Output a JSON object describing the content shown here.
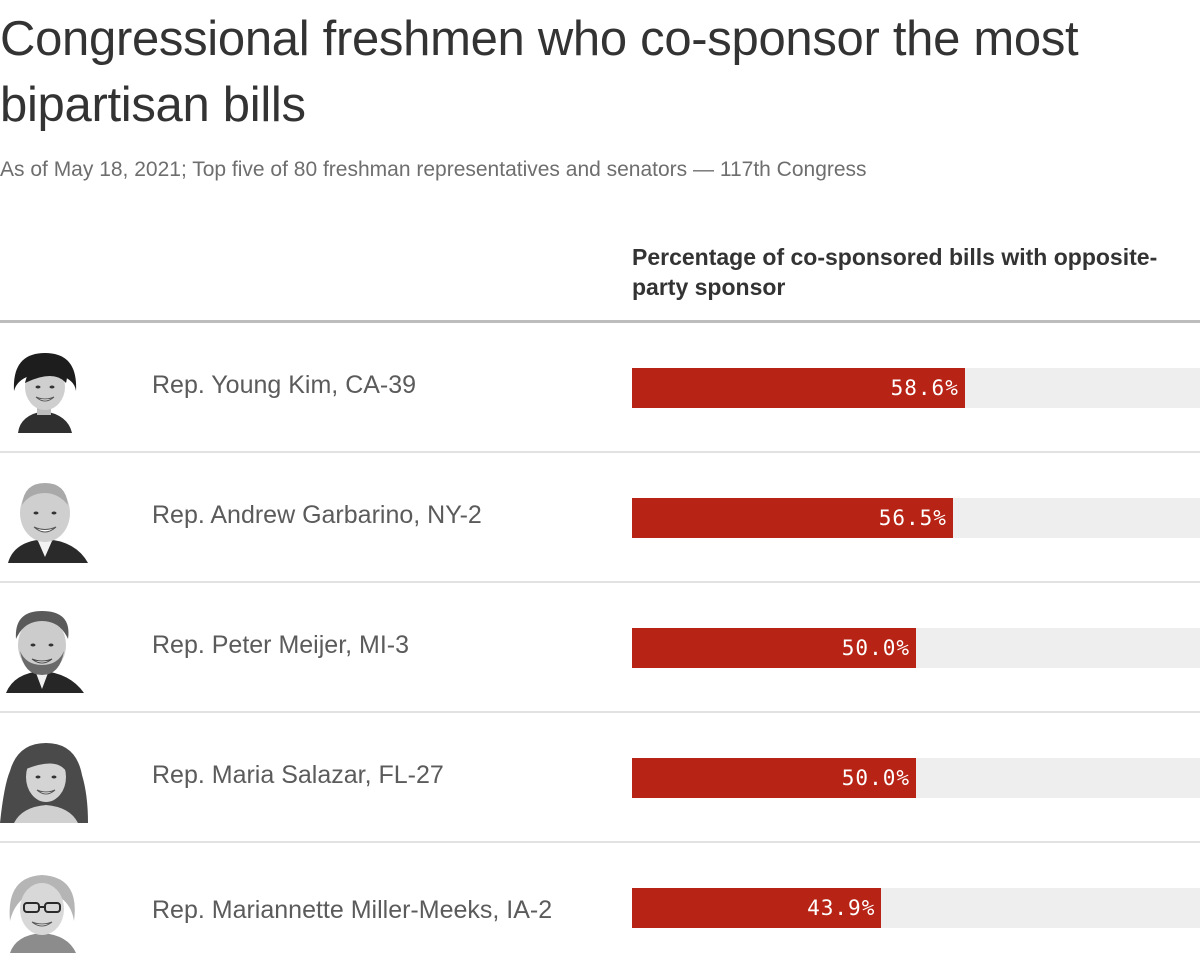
{
  "title": "Congressional freshmen who co-sponsor the most bipartisan bills",
  "subtitle": "As of May 18, 2021; Top five of 80 freshman representatives and senators — 117th Congress",
  "column_header": "Percentage of co-sponsored bills with opposite-party sponsor",
  "colors": {
    "bar": "#b72314",
    "track": "#eeeeee",
    "text": "#333333",
    "muted": "#6e6e6e"
  },
  "chart_data": {
    "type": "bar",
    "orientation": "horizontal",
    "title": "Congressional freshmen who co-sponsor the most bipartisan bills",
    "subtitle": "As of May 18, 2021; Top five of 80 freshman representatives and senators — 117th Congress",
    "xlabel": "Percentage of co-sponsored bills with opposite-party sponsor",
    "xlim": [
      0,
      100
    ],
    "categories": [
      "Rep. Young Kim, CA-39",
      "Rep. Andrew Garbarino, NY-2",
      "Rep. Peter Meijer, MI-3",
      "Rep. Maria Salazar, FL-27",
      "Rep. Mariannette Miller-Meeks, IA-2"
    ],
    "values": [
      58.6,
      56.5,
      50.0,
      50.0,
      43.9
    ],
    "labels": [
      "58.6%",
      "56.5%",
      "50.0%",
      "50.0%",
      "43.9%"
    ],
    "grid": false,
    "legend": "none"
  },
  "rows": [
    {
      "name": "Rep. Young Kim, CA-39",
      "value": 58.6,
      "label": "58.6%",
      "portrait": "portrait-woman-icon"
    },
    {
      "name": "Rep. Andrew Garbarino, NY-2",
      "value": 56.5,
      "label": "56.5%",
      "portrait": "portrait-man-icon"
    },
    {
      "name": "Rep. Peter Meijer, MI-3",
      "value": 50.0,
      "label": "50.0%",
      "portrait": "portrait-man-icon"
    },
    {
      "name": "Rep. Maria Salazar, FL-27",
      "value": 50.0,
      "label": "50.0%",
      "portrait": "portrait-woman-icon"
    },
    {
      "name": "Rep. Mariannette Miller-Meeks, IA-2",
      "value": 43.9,
      "label": "43.9%",
      "portrait": "portrait-woman-glasses-icon"
    }
  ]
}
